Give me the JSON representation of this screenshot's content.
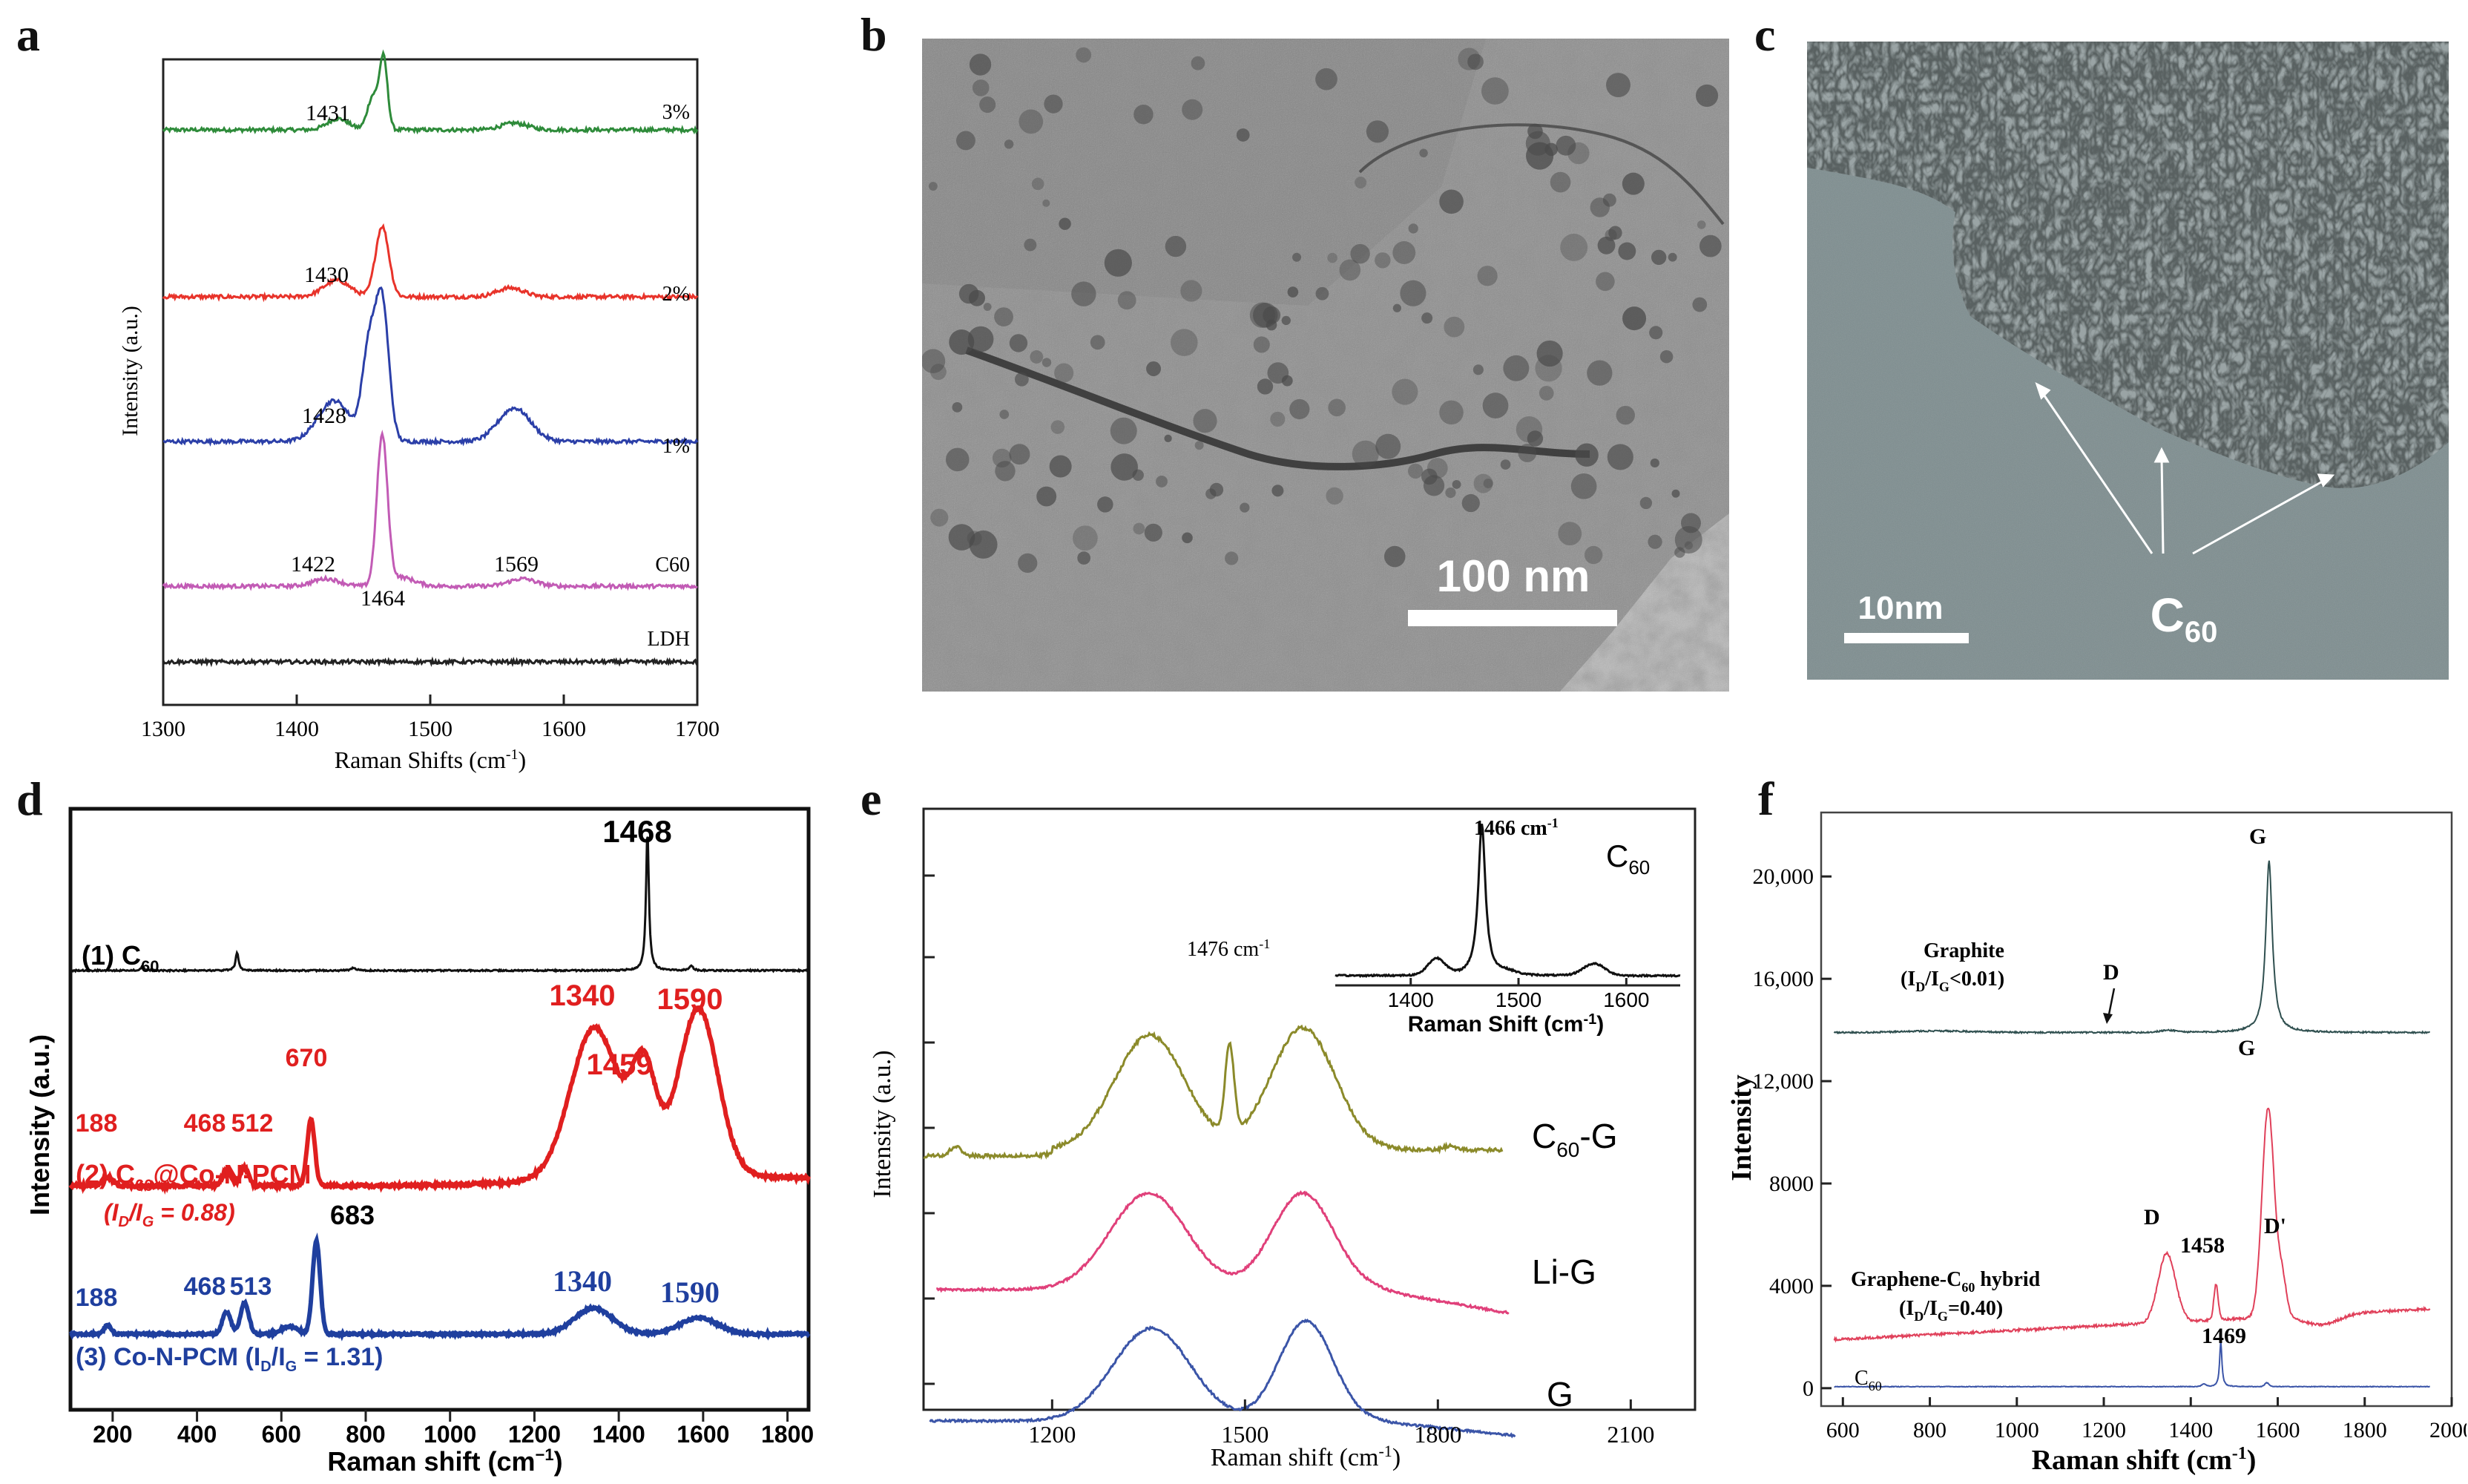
{
  "panels": {
    "a": {
      "label": "a"
    },
    "b": {
      "label": "b",
      "scale_bar": "100 nm"
    },
    "c": {
      "label": "c",
      "scale_bar": "10nm",
      "annotation": "C60",
      "annotation_main": "C",
      "annotation_sub": "60"
    },
    "d": {
      "label": "d"
    },
    "e": {
      "label": "e"
    },
    "f": {
      "label": "f"
    }
  },
  "chart_data": [
    {
      "panel": "a",
      "type": "line",
      "xlabel": "Raman Shifts (cm",
      "xlabel_sup": "-1",
      "xlabel_end": ")",
      "ylabel": "Intensity (a.u.)",
      "xlim": [
        1300,
        1700
      ],
      "xticks": [
        1300,
        1400,
        1500,
        1600,
        1700
      ],
      "series": [
        {
          "name": "3%",
          "color": "#2e8b3a"
        },
        {
          "name": "2%",
          "color": "#e8332a"
        },
        {
          "name": "1%",
          "color": "#2b3fa8"
        },
        {
          "name": "C60",
          "color": "#c25bb5"
        },
        {
          "name": "LDH",
          "color": "#222222"
        }
      ],
      "annotations": [
        "1431",
        "1430",
        "1428",
        "1422",
        "1464",
        "1569"
      ]
    },
    {
      "panel": "d",
      "type": "line",
      "xlabel": "Raman shift (cm",
      "xlabel_sup": "−1",
      "xlabel_end": ")",
      "ylabel": "Intensity (a.u.)",
      "xlim": [
        100,
        1850
      ],
      "xticks": [
        200,
        400,
        600,
        800,
        1000,
        1200,
        1400,
        1600,
        1800
      ],
      "series": [
        {
          "name": "(1) C",
          "name_sub": "60",
          "color": "#111111"
        },
        {
          "name": "(2) C",
          "name_sub": "60",
          "name_end": "@Co-N-PCM",
          "color": "#e01f1f"
        },
        {
          "name": "(3) Co-N-PCM",
          "color": "#1f3f9e"
        }
      ],
      "annotations": {
        "c60": [
          "1468"
        ],
        "c60_co": [
          "188",
          "468",
          "512",
          "670",
          "1340",
          "1459",
          "1590"
        ],
        "co": [
          "188",
          "468",
          "513",
          "683",
          "1340",
          "1590"
        ]
      },
      "ratio_2": {
        "pre": "(I",
        "sub1": "D",
        "mid": "/I",
        "sub2": "G",
        "post": " = 0.88)"
      },
      "ratio_3": {
        "pre": "(3) Co-N-PCM (I",
        "sub1": "D",
        "mid": "/I",
        "sub2": "G",
        "post": " = 1.31)"
      }
    },
    {
      "panel": "e",
      "type": "line",
      "xlabel": "Raman shift (cm",
      "xlabel_sup": "-1",
      "xlabel_end": ")",
      "ylabel": "Intensity (a.u.)",
      "xlim": [
        1000,
        2200
      ],
      "xticks": [
        1200,
        1500,
        1800,
        2100
      ],
      "series": [
        {
          "name": "C",
          "name_sub": "60",
          "name_end": "-G",
          "color": "#8b8a2a"
        },
        {
          "name": "Li-G",
          "color": "#e0407a"
        },
        {
          "name": "G",
          "color": "#3b55a8"
        }
      ],
      "annotations": [
        "1476 cm"
      ],
      "annotation_sup": "-1",
      "inset": {
        "xlabel": "Raman Shift (cm",
        "xlabel_sup": "-1",
        "xlabel_end": ")",
        "xticks": [
          1400,
          1500,
          1600
        ],
        "peak_label": "1466 cm",
        "peak_sup": "-1",
        "series_label": "C",
        "series_sub": "60"
      }
    },
    {
      "panel": "f",
      "type": "line",
      "xlabel": "Raman shift (cm",
      "xlabel_sup": "-1",
      "xlabel_end": ")",
      "ylabel": "Intensity",
      "xlim": [
        550,
        2000
      ],
      "ylim": [
        -700,
        22500
      ],
      "xticks": [
        600,
        800,
        1000,
        1200,
        1400,
        1600,
        1800,
        2000
      ],
      "yticks": [
        0,
        4000,
        8000,
        12000,
        16000,
        20000
      ],
      "ytick_labels": [
        "0",
        "4000",
        "8000",
        "12,000",
        "16,000",
        "20,000"
      ],
      "series": [
        {
          "name": "Graphite",
          "ratio": "(I_D/I_G<0.01)",
          "color": "#2f4f4f"
        },
        {
          "name": "Graphene-C60 hybrid",
          "ratio": "(I_D/I_G=0.40)",
          "color": "#e0405a"
        },
        {
          "name": "C60",
          "color": "#3b55a8"
        }
      ],
      "text": {
        "graphite": "Graphite",
        "graphite_ratio_pre": "(I",
        "graphite_ratio_mid": "/I",
        "graphite_ratio_post": "<0.01)",
        "hybrid_pre": "Graphene-C",
        "hybrid_sub": "60",
        "hybrid_post": " hybrid",
        "hybrid_ratio_pre": "(I",
        "hybrid_ratio_mid": "/I",
        "hybrid_ratio_post": "=0.40)",
        "sub_d": "D",
        "sub_g": "G",
        "c60": "C",
        "c60_sub": "60"
      },
      "annotations": [
        "D",
        "G",
        "G",
        "D",
        "1458",
        "D'",
        "1469"
      ]
    }
  ]
}
